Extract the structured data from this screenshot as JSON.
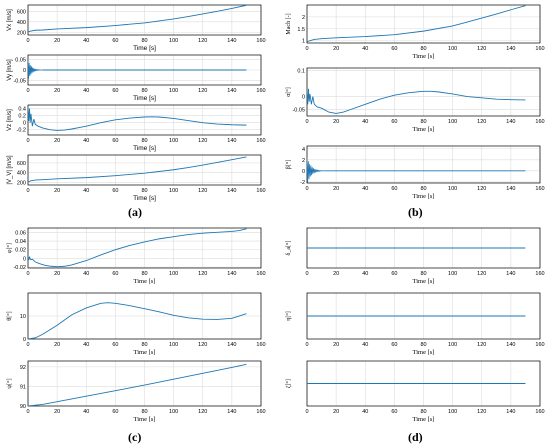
{
  "figure": {
    "panel_labels": [
      "(a)",
      "(b)",
      "(c)",
      "(d)"
    ]
  },
  "chart_data": [
    {
      "type": "line",
      "panel": "a",
      "index": 0,
      "ylabel": "Vx [m/s]",
      "xlabel": "Time [s]",
      "xlim": [
        0,
        160
      ],
      "ylim": [
        150,
        720
      ],
      "xticks": [
        "0",
        "20",
        "40",
        "60",
        "80",
        "100",
        "120",
        "140",
        "160"
      ],
      "yticks": [
        "200",
        "400",
        "600"
      ],
      "grid": true,
      "series": [
        {
          "x": [
            0,
            2,
            5,
            10,
            20,
            40,
            60,
            80,
            100,
            110,
            120,
            130,
            140,
            150
          ],
          "y": [
            210,
            225,
            240,
            245,
            265,
            290,
            330,
            380,
            455,
            500,
            550,
            600,
            655,
            715
          ]
        }
      ]
    },
    {
      "type": "line",
      "panel": "a",
      "index": 1,
      "ylabel": "Vy [m/s]",
      "xlabel": "Time [s]",
      "xlim": [
        0,
        160
      ],
      "ylim": [
        -0.07,
        0.07
      ],
      "xticks": [
        "0",
        "20",
        "40",
        "60",
        "80",
        "100",
        "120",
        "140",
        "160"
      ],
      "yticks": [
        "0.05",
        "0",
        "-0.05"
      ],
      "grid": true,
      "oscillation": {
        "amplitude": 0.05,
        "decay_time": 2,
        "period": 0.8,
        "until": 10
      },
      "series": [
        {
          "x": [
            10,
            150
          ],
          "y": [
            0,
            0
          ]
        }
      ]
    },
    {
      "type": "line",
      "panel": "a",
      "index": 2,
      "ylabel": "Vz [m/s]",
      "xlabel": "Time [s]",
      "xlim": [
        0,
        160
      ],
      "ylim": [
        -0.35,
        0.5
      ],
      "xticks": [
        "0",
        "20",
        "40",
        "60",
        "80",
        "100",
        "120",
        "140",
        "160"
      ],
      "yticks": [
        "0.4",
        "0.2",
        "0",
        "-0.2"
      ],
      "grid": true,
      "series": [
        {
          "x": [
            0,
            0.5,
            1,
            1.5,
            2,
            3,
            4,
            5,
            7,
            10,
            15,
            20,
            25,
            30,
            40,
            50,
            60,
            70,
            80,
            85,
            90,
            100,
            110,
            120,
            130,
            140,
            150
          ],
          "y": [
            0.45,
            0.05,
            0.4,
            0.0,
            0.25,
            -0.1,
            0.1,
            -0.05,
            -0.1,
            -0.15,
            -0.2,
            -0.22,
            -0.21,
            -0.18,
            -0.1,
            0.0,
            0.08,
            0.13,
            0.16,
            0.165,
            0.16,
            0.12,
            0.06,
            0.0,
            -0.04,
            -0.06,
            -0.07
          ]
        }
      ]
    },
    {
      "type": "line",
      "panel": "a",
      "index": 3,
      "ylabel": "|V_V| [m/s]",
      "xlabel": "Time [s]",
      "xlim": [
        0,
        160
      ],
      "ylim": [
        150,
        760
      ],
      "xticks": [
        "0",
        "20",
        "40",
        "60",
        "80",
        "100",
        "120",
        "140",
        "160"
      ],
      "yticks": [
        "200",
        "400",
        "600"
      ],
      "grid": true,
      "series": [
        {
          "x": [
            0,
            2,
            5,
            10,
            20,
            40,
            60,
            80,
            100,
            110,
            120,
            130,
            140,
            150
          ],
          "y": [
            215,
            235,
            250,
            258,
            275,
            300,
            340,
            390,
            460,
            505,
            555,
            610,
            665,
            720
          ]
        }
      ]
    },
    {
      "type": "line",
      "panel": "b",
      "index": 0,
      "ylabel": "Mach [-]",
      "xlabel": "Time [s]",
      "xlim": [
        0,
        160
      ],
      "ylim": [
        0.9,
        2.5
      ],
      "xticks": [
        "0",
        "20",
        "40",
        "60",
        "80",
        "100",
        "120",
        "140",
        "160"
      ],
      "yticks": [
        "2",
        "1.5",
        "1"
      ],
      "grid": true,
      "series": [
        {
          "x": [
            0,
            2,
            5,
            10,
            20,
            40,
            60,
            80,
            100,
            110,
            120,
            130,
            140,
            150
          ],
          "y": [
            0.95,
            1.0,
            1.05,
            1.08,
            1.12,
            1.17,
            1.25,
            1.4,
            1.62,
            1.78,
            1.95,
            2.12,
            2.3,
            2.47
          ]
        }
      ]
    },
    {
      "type": "line",
      "panel": "b",
      "index": 1,
      "ylabel": "α[°]",
      "xlabel": "Time [s]",
      "xlim": [
        0,
        160
      ],
      "ylim": [
        -0.075,
        0.11
      ],
      "xticks": [
        "0",
        "20",
        "40",
        "60",
        "80",
        "100",
        "120",
        "140",
        "160"
      ],
      "yticks": [
        "0.1",
        "0",
        "-0.05"
      ],
      "grid": true,
      "series": [
        {
          "x": [
            0,
            0.5,
            1,
            1.5,
            2,
            3,
            4,
            5,
            7,
            10,
            15,
            20,
            25,
            30,
            40,
            50,
            60,
            70,
            80,
            85,
            90,
            100,
            110,
            120,
            130,
            140,
            150
          ],
          "y": [
            0.02,
            -0.03,
            0.03,
            -0.02,
            0.01,
            -0.03,
            0.0,
            -0.03,
            -0.04,
            -0.045,
            -0.06,
            -0.065,
            -0.06,
            -0.05,
            -0.03,
            -0.01,
            0.005,
            0.015,
            0.02,
            0.02,
            0.018,
            0.01,
            0.0,
            -0.005,
            -0.01,
            -0.012,
            -0.013
          ]
        }
      ]
    },
    {
      "type": "line",
      "panel": "b",
      "index": 2,
      "ylabel": "β[°]",
      "xlabel": "Time [s]",
      "xlim": [
        0,
        160
      ],
      "ylim": [
        -2.2,
        4.5
      ],
      "xticks": [
        "0",
        "20",
        "40",
        "60",
        "80",
        "100",
        "120",
        "140",
        "160"
      ],
      "yticks": [
        "4",
        "2",
        "0",
        "-2"
      ],
      "grid": true,
      "oscillation": {
        "amplitude": 2.5,
        "decay_time": 2.5,
        "period": 0.9,
        "until": 12
      },
      "series": [
        {
          "x": [
            12,
            150
          ],
          "y": [
            0,
            0
          ]
        }
      ]
    },
    {
      "type": "line",
      "panel": "c",
      "index": 0,
      "ylabel": "φ[°]",
      "xlabel": "Time [s]",
      "xlim": [
        0,
        160
      ],
      "ylim": [
        -0.022,
        0.07
      ],
      "xticks": [
        "0",
        "20",
        "40",
        "60",
        "80",
        "100",
        "120",
        "140",
        "160"
      ],
      "yticks": [
        "0.06",
        "0.04",
        "0.02",
        "0",
        "-0.02"
      ],
      "grid": true,
      "series": [
        {
          "x": [
            0,
            0.5,
            1,
            2,
            3,
            5,
            8,
            12,
            16,
            20,
            25,
            30,
            40,
            50,
            60,
            70,
            80,
            90,
            100,
            110,
            120,
            130,
            140,
            145,
            150
          ],
          "y": [
            0.006,
            -0.004,
            0.003,
            -0.003,
            -0.002,
            -0.008,
            -0.012,
            -0.016,
            -0.018,
            -0.019,
            -0.018,
            -0.015,
            -0.005,
            0.008,
            0.02,
            0.03,
            0.038,
            0.045,
            0.05,
            0.055,
            0.058,
            0.06,
            0.062,
            0.064,
            0.068
          ]
        }
      ]
    },
    {
      "type": "line",
      "panel": "c",
      "index": 1,
      "ylabel": "θ[°]",
      "xlabel": "Time [s]",
      "xlim": [
        0,
        160
      ],
      "ylim": [
        0,
        20
      ],
      "xticks": [
        "0",
        "20",
        "40",
        "60",
        "80",
        "100",
        "120",
        "140",
        "160"
      ],
      "yticks": [
        "10",
        "0"
      ],
      "grid": true,
      "series": [
        {
          "x": [
            0,
            5,
            10,
            20,
            30,
            40,
            50,
            55,
            60,
            70,
            80,
            90,
            100,
            110,
            120,
            130,
            140,
            150
          ],
          "y": [
            0,
            0.5,
            2,
            6,
            10.5,
            13.5,
            15.5,
            15.8,
            15.5,
            14.5,
            13.2,
            11.8,
            10.3,
            9.2,
            8.6,
            8.5,
            9,
            11
          ]
        }
      ]
    },
    {
      "type": "line",
      "panel": "c",
      "index": 2,
      "ylabel": "ψ[°]",
      "xlabel": "Time [s]",
      "xlim": [
        0,
        160
      ],
      "ylim": [
        90,
        92.3
      ],
      "xticks": [
        "0",
        "20",
        "40",
        "60",
        "80",
        "100",
        "120",
        "140",
        "160"
      ],
      "yticks": [
        "92",
        "91",
        "90"
      ],
      "grid": true,
      "series": [
        {
          "x": [
            0,
            10,
            20,
            40,
            60,
            80,
            100,
            120,
            140,
            150
          ],
          "y": [
            90,
            90.08,
            90.22,
            90.5,
            90.78,
            91.07,
            91.37,
            91.67,
            91.97,
            92.13
          ]
        }
      ]
    },
    {
      "type": "line",
      "panel": "d",
      "index": 0,
      "ylabel": "δ_a[°]",
      "xlabel": "Time [s]",
      "xlim": [
        0,
        160
      ],
      "ylim": [
        -1,
        1
      ],
      "xticks": [
        "0",
        "20",
        "40",
        "60",
        "80",
        "100",
        "120",
        "140",
        "160"
      ],
      "yticks": [],
      "grid": true,
      "series": [
        {
          "x": [
            0,
            150
          ],
          "y": [
            0,
            0
          ]
        }
      ]
    },
    {
      "type": "line",
      "panel": "d",
      "index": 1,
      "ylabel": "η[°]",
      "xlabel": "Time [s]",
      "xlim": [
        0,
        160
      ],
      "ylim": [
        -1,
        1
      ],
      "xticks": [
        "0",
        "20",
        "40",
        "60",
        "80",
        "100",
        "120",
        "140",
        "160"
      ],
      "yticks": [],
      "grid": true,
      "series": [
        {
          "x": [
            0,
            150
          ],
          "y": [
            0,
            0
          ]
        }
      ]
    },
    {
      "type": "line",
      "panel": "d",
      "index": 2,
      "ylabel": "ζ[°]",
      "xlabel": "Time [s]",
      "xlim": [
        0,
        160
      ],
      "ylim": [
        -1,
        1
      ],
      "xticks": [
        "0",
        "20",
        "40",
        "60",
        "80",
        "100",
        "120",
        "140",
        "160"
      ],
      "yticks": [],
      "grid": true,
      "series": [
        {
          "x": [
            0,
            150
          ],
          "y": [
            0,
            0
          ]
        }
      ]
    }
  ],
  "colors": {
    "line": "#1f77b4",
    "grid": "#dcdcdc",
    "axis": "#000000"
  }
}
